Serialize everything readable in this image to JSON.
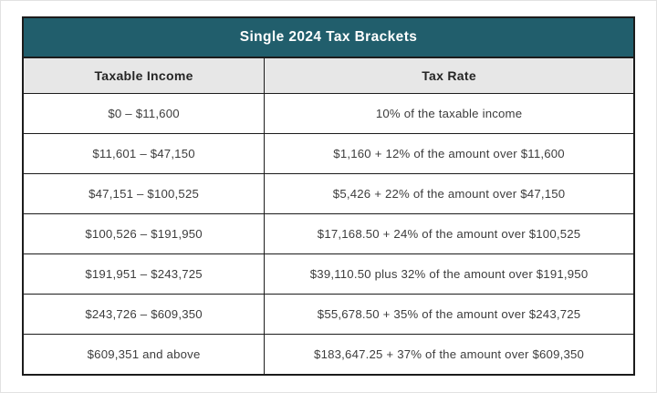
{
  "colors": {
    "title-bg": "#215e6c",
    "title-text": "#ffffff",
    "header-bg": "#e7e7e7",
    "border": "#1c1c1c",
    "cell-text": "#3d3d3d"
  },
  "chart_data": {
    "type": "table",
    "title": "Single 2024 Tax Brackets",
    "columns": [
      "Taxable Income",
      "Tax Rate"
    ],
    "rows": [
      [
        "$0 – $11,600",
        "10% of the taxable income"
      ],
      [
        "$11,601 – $47,150",
        "$1,160 + 12% of the amount over $11,600"
      ],
      [
        "$47,151 – $100,525",
        "$5,426 + 22% of the amount over $47,150"
      ],
      [
        "$100,526 – $191,950",
        "$17,168.50 + 24% of the amount over $100,525"
      ],
      [
        "$191,951 – $243,725",
        "$39,110.50 plus 32% of the amount over $191,950"
      ],
      [
        "$243,726 – $609,350",
        "$55,678.50 + 35% of the amount over $243,725"
      ],
      [
        "$609,351 and above",
        "$183,647.25 + 37% of the amount over $609,350"
      ]
    ]
  }
}
